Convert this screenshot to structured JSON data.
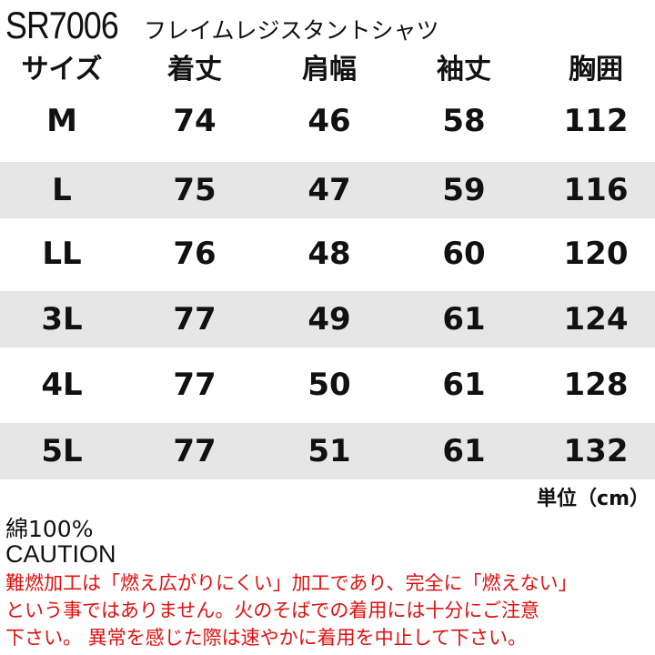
{
  "title": {
    "code": "SR7006",
    "name": "フレイムレジスタントシャツ"
  },
  "table": {
    "headers": [
      "サイズ",
      "着丈",
      "肩幅",
      "袖丈",
      "胸囲"
    ],
    "rows": [
      [
        "M",
        "74",
        "46",
        "58",
        "112"
      ],
      [
        "L",
        "75",
        "47",
        "59",
        "116"
      ],
      [
        "LL",
        "76",
        "48",
        "60",
        "120"
      ],
      [
        "3L",
        "77",
        "49",
        "61",
        "124"
      ],
      [
        "4L",
        "77",
        "50",
        "61",
        "128"
      ],
      [
        "5L",
        "77",
        "51",
        "61",
        "132"
      ]
    ]
  },
  "unit": "単位（cm）",
  "material": "綿100%",
  "caution_label": "CAUTION",
  "caution_text": "難燃加工は「燃え広がりにくい」加工であり、完全に「燃えない」\nという事ではありません。火のそばでの着用には十分にご注意\n下さい。 異常を感じた際は速やかに着用を中止して下さい。",
  "colors": {
    "stripe": "#e6e6e6",
    "warning": "#e01010"
  }
}
